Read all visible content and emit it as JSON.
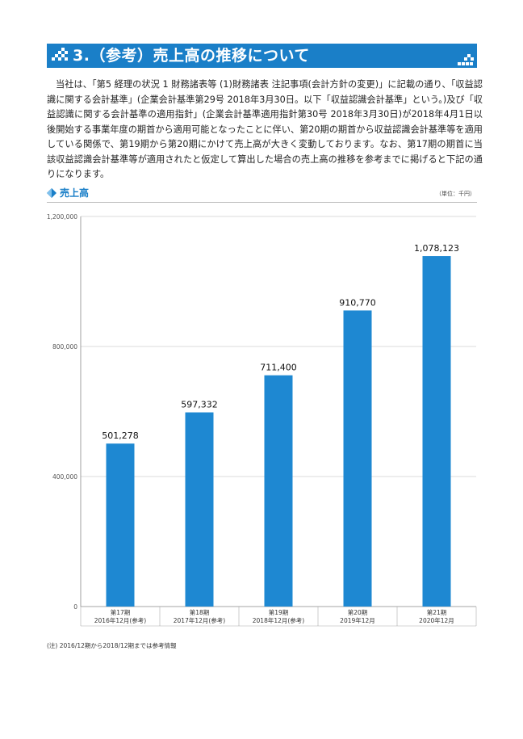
{
  "header": {
    "title": "3.（参考）売上高の推移について"
  },
  "body_text": "当社は、「第5 経理の状況 1 財務諸表等 (1)財務諸表 注記事項(会計方針の変更)」に記載の通り、「収益認識に関する会計基準」(企業会計基準第29号 2018年3月30日。以下「収益認識会計基準」という。)及び「収益認識に関する会計基準の適用指針」(企業会計基準適用指針第30号 2018年3月30日)が2018年4月1日以後開始する事業年度の期首から適用可能となったことに伴い、第20期の期首から収益認識会計基準等を適用している関係で、第19期から第20期にかけて売上高が大きく変動しております。なお、第17期の期首に当該収益認識会計基準等が適用されたと仮定して算出した場合の売上高の推移を参考までに掲げると下記の通りになります。",
  "section": {
    "label": "売上高",
    "unit": "（単位：千円）"
  },
  "note": "(注) 2016/12期から2018/12期までは参考情報",
  "colors": {
    "accent": "#1a7fc8",
    "bar": "#1e88d2"
  },
  "chart_data": {
    "type": "bar",
    "categories": [
      [
        "第17期",
        "2016年12月(参考)"
      ],
      [
        "第18期",
        "2017年12月(参考)"
      ],
      [
        "第19期",
        "2018年12月(参考)"
      ],
      [
        "第20期",
        "2019年12月"
      ],
      [
        "第21期",
        "2020年12月"
      ]
    ],
    "values": [
      501278,
      597332,
      711400,
      910770,
      1078123
    ],
    "value_labels": [
      "501,278",
      "597,332",
      "711,400",
      "910,770",
      "1,078,123"
    ],
    "ylim": [
      0,
      1200000
    ],
    "yticks": [
      0,
      400000,
      800000,
      1200000
    ],
    "ytick_labels": [
      "0",
      "400,000",
      "800,000",
      "1,200,000"
    ],
    "grid": true
  }
}
